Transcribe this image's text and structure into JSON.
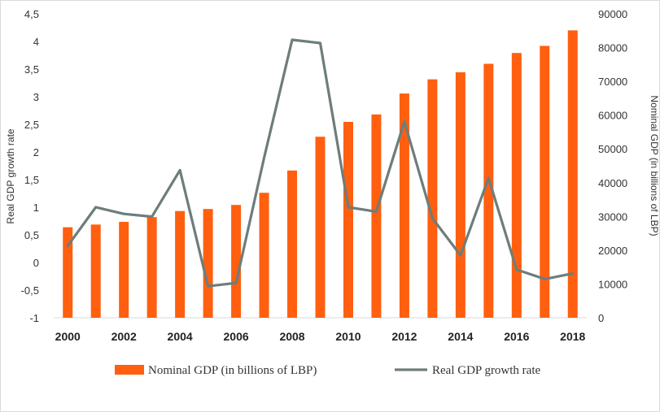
{
  "chart_data": {
    "type": "bar",
    "x": [
      "2000",
      "2001",
      "2002",
      "2003",
      "2004",
      "2005",
      "2006",
      "2007",
      "2008",
      "2009",
      "2010",
      "2011",
      "2012",
      "2013",
      "2014",
      "2015",
      "2016",
      "2017",
      "2018"
    ],
    "x_tick_labels": [
      "2000",
      "2002",
      "2004",
      "2006",
      "2008",
      "2010",
      "2012",
      "2014",
      "2016",
      "2018"
    ],
    "series": [
      {
        "name": "Nominal GDP (in billions of LBP)",
        "type": "bar",
        "axis": "right",
        "color": "#ff5f0f",
        "values": [
          26800,
          27600,
          28400,
          29800,
          31600,
          32200,
          33400,
          37000,
          43600,
          53600,
          58000,
          60200,
          66400,
          70600,
          72700,
          75200,
          78400,
          80500,
          85100
        ]
      },
      {
        "name": "Real GDP growth rate",
        "type": "line",
        "axis": "left",
        "color": "#6d7d7b",
        "values": [
          0.3,
          1.0,
          0.88,
          0.83,
          1.67,
          -0.43,
          -0.37,
          1.9,
          4.03,
          3.97,
          1.0,
          0.92,
          2.55,
          0.8,
          0.13,
          1.53,
          -0.13,
          -0.3,
          -0.2
        ]
      }
    ],
    "left_axis": {
      "title": "Real GDP growth rate",
      "ylim": [
        -1,
        4.5
      ],
      "tick_labels": [
        "-1",
        "-0,5",
        "0",
        "0,5",
        "1",
        "1,5",
        "2",
        "2,5",
        "3",
        "3,5",
        "4",
        "4,5"
      ]
    },
    "right_axis": {
      "title": "Nominal GDP (in billions of LBP)",
      "ylim": [
        0,
        90000
      ],
      "tick_labels": [
        "0",
        "10000",
        "20000",
        "30000",
        "40000",
        "50000",
        "60000",
        "70000",
        "80000",
        "90000"
      ]
    },
    "grid": false,
    "legend_position": "bottom"
  }
}
